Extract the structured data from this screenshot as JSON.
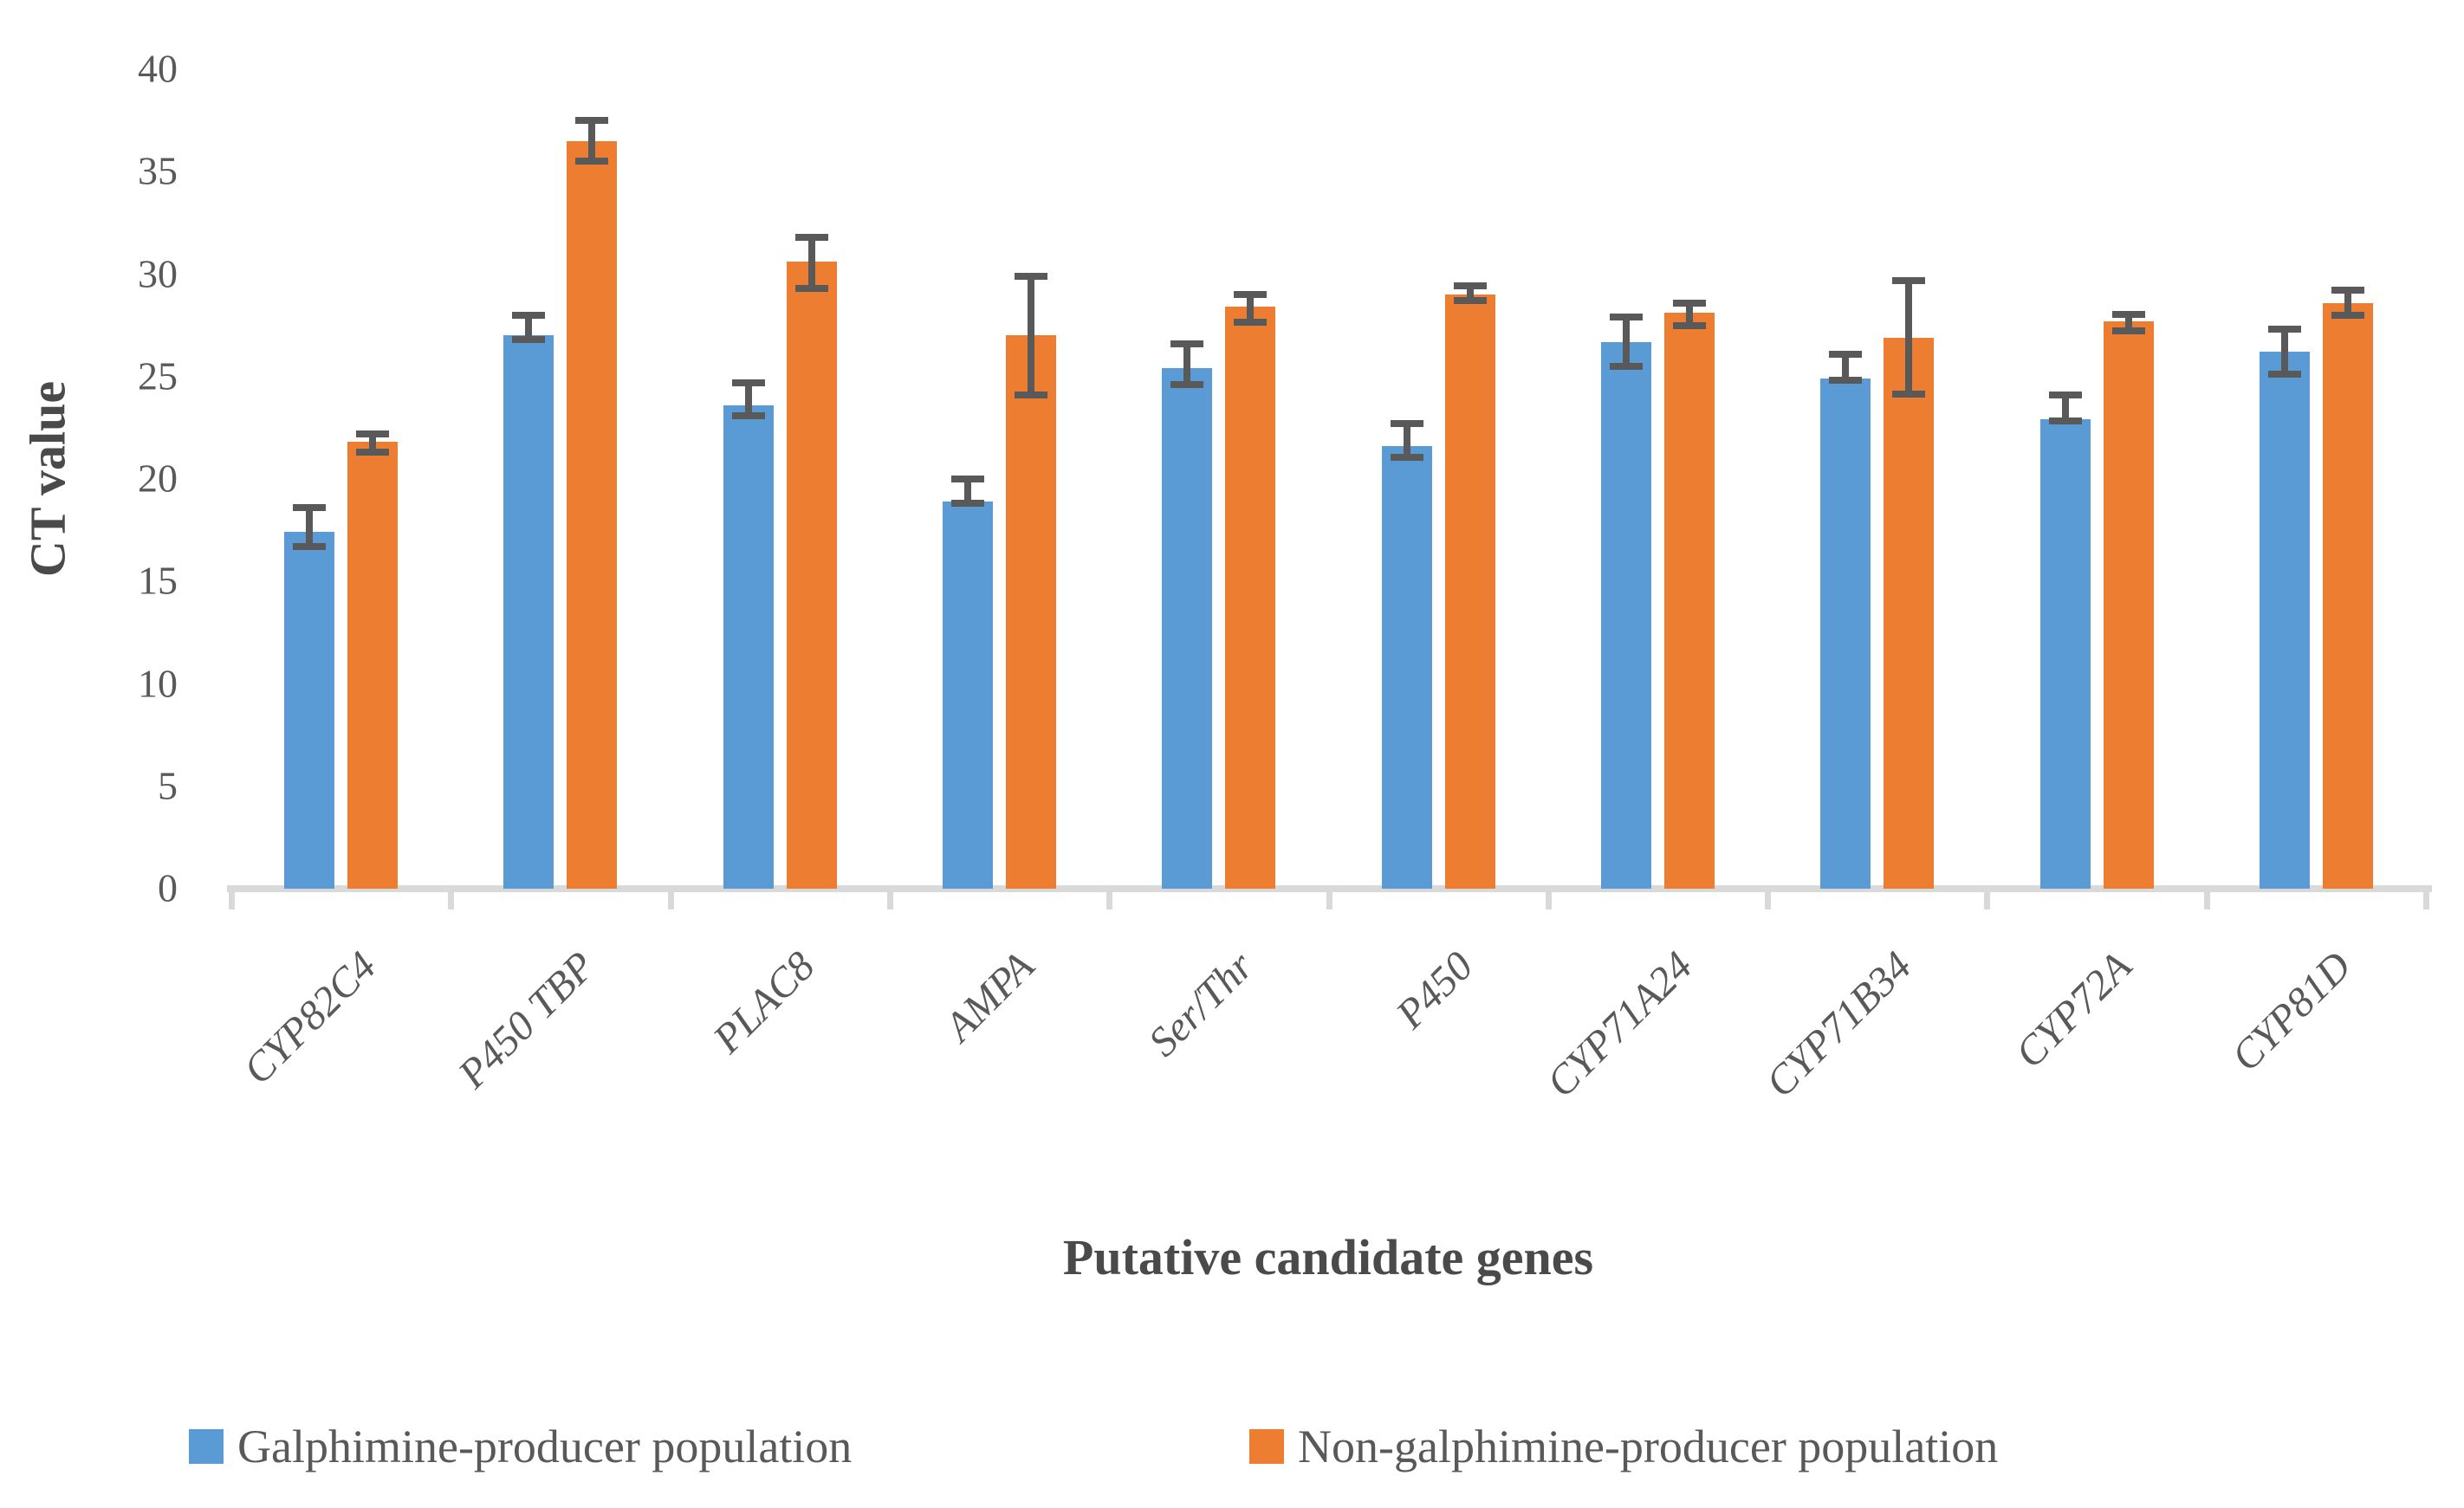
{
  "chart_data": {
    "type": "bar",
    "title": "",
    "xlabel": "Putative candidate genes",
    "ylabel": "CT value",
    "ylim": [
      0,
      40
    ],
    "yticks": [
      0,
      5,
      10,
      15,
      20,
      25,
      30,
      35,
      40
    ],
    "grid": false,
    "legend_position": "bottom",
    "categories": [
      "CYP82C4",
      "P450 TBP",
      "PLAC8",
      "AMPA",
      "Ser/Thr",
      "P450",
      "CYP71A24",
      "CYP71B34",
      "CYP72A",
      "CYP81D"
    ],
    "series": [
      {
        "name": "Galphimine-producer population",
        "color": "#5B9BD5",
        "values": [
          17.4,
          27.0,
          23.6,
          18.9,
          25.4,
          21.6,
          26.7,
          24.9,
          22.9,
          26.2
        ],
        "error_plus": [
          1.2,
          1.0,
          1.1,
          1.1,
          1.2,
          1.1,
          1.2,
          1.2,
          1.2,
          1.1
        ],
        "error_minus": [
          0.7,
          0.2,
          0.5,
          0.1,
          0.8,
          0.55,
          1.2,
          0.1,
          0.05,
          1.1
        ]
      },
      {
        "name": "Non-galphimine-producer population",
        "color": "#ED7D31",
        "values": [
          21.8,
          36.5,
          30.6,
          27.0,
          28.4,
          29.0,
          28.1,
          26.9,
          27.7,
          28.6
        ],
        "error_plus": [
          0.4,
          1.0,
          1.2,
          2.9,
          0.6,
          0.45,
          0.5,
          2.8,
          0.35,
          0.6
        ],
        "error_minus": [
          0.5,
          1.0,
          1.3,
          2.9,
          0.75,
          0.3,
          0.6,
          2.75,
          0.45,
          0.6
        ]
      }
    ],
    "error_bar_color": "#595959",
    "axis_line_color": "#D9D9D9",
    "text_color": "#595959"
  }
}
